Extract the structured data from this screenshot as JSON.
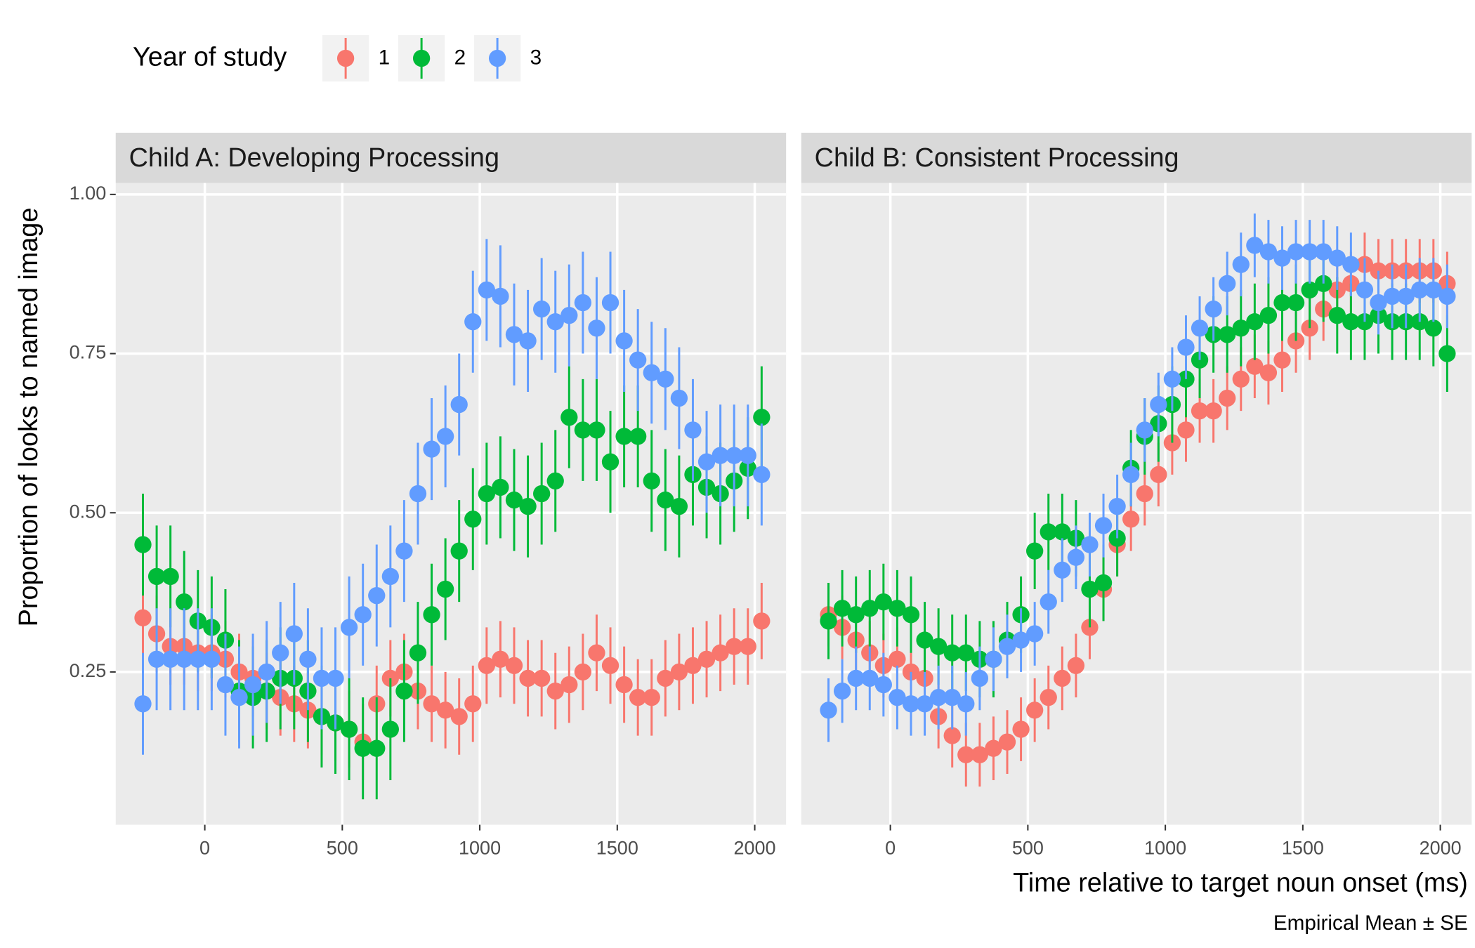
{
  "legend_title": "Year of study",
  "y_label": "Proportion of looks to named image",
  "x_label": "Time relative to target noun onset (ms)",
  "caption": "Empirical Mean ± SE",
  "chart_data": [
    {
      "type": "pointrange",
      "title": "Child A: Developing Processing",
      "x": [
        -225,
        -175,
        -125,
        -75,
        -25,
        25,
        75,
        125,
        175,
        225,
        275,
        325,
        375,
        425,
        475,
        525,
        575,
        625,
        675,
        725,
        775,
        825,
        875,
        925,
        975,
        1025,
        1075,
        1125,
        1175,
        1225,
        1275,
        1325,
        1375,
        1425,
        1475,
        1525,
        1575,
        1625,
        1675,
        1725,
        1775,
        1825,
        1875,
        1925,
        1975,
        2025
      ],
      "xlim": [
        -324,
        2114
      ],
      "xticks": [
        0,
        500,
        1000,
        1500,
        2000
      ],
      "ylim": [
        0.01,
        1.018
      ],
      "yticks": [
        {
          "value": 0.25,
          "label": "0.25"
        },
        {
          "value": 0.5,
          "label": "0.50"
        },
        {
          "value": 0.75,
          "label": "0.75"
        },
        {
          "value": 1,
          "label": "1.00"
        }
      ],
      "grid": true,
      "series": [
        {
          "name": "1",
          "color": "#f8766d",
          "se": 0.06,
          "values": [
            0.335,
            0.31,
            0.29,
            0.29,
            0.28,
            0.28,
            0.27,
            0.25,
            0.24,
            0.22,
            0.21,
            0.2,
            0.19,
            0.18,
            0.17,
            0.16,
            0.14,
            0.2,
            0.24,
            0.25,
            0.22,
            0.2,
            0.19,
            0.18,
            0.2,
            0.26,
            0.27,
            0.26,
            0.24,
            0.24,
            0.22,
            0.23,
            0.25,
            0.28,
            0.26,
            0.23,
            0.21,
            0.21,
            0.24,
            0.25,
            0.26,
            0.27,
            0.28,
            0.29,
            0.29,
            0.33
          ]
        },
        {
          "name": "2",
          "color": "#00ba38",
          "se": 0.08,
          "values": [
            0.45,
            0.4,
            0.4,
            0.36,
            0.33,
            0.32,
            0.3,
            0.22,
            0.21,
            0.22,
            0.24,
            0.24,
            0.22,
            0.18,
            0.17,
            0.16,
            0.13,
            0.13,
            0.16,
            0.22,
            0.28,
            0.34,
            0.38,
            0.44,
            0.49,
            0.53,
            0.54,
            0.52,
            0.51,
            0.53,
            0.55,
            0.65,
            0.63,
            0.63,
            0.58,
            0.62,
            0.62,
            0.55,
            0.52,
            0.51,
            0.56,
            0.54,
            0.53,
            0.55,
            0.57,
            0.65
          ]
        },
        {
          "name": "3",
          "color": "#619cff",
          "se": 0.08,
          "values": [
            0.2,
            0.27,
            0.27,
            0.27,
            0.27,
            0.27,
            0.23,
            0.21,
            0.23,
            0.25,
            0.28,
            0.31,
            0.27,
            0.24,
            0.24,
            0.32,
            0.34,
            0.37,
            0.4,
            0.44,
            0.53,
            0.6,
            0.62,
            0.67,
            0.8,
            0.85,
            0.84,
            0.78,
            0.77,
            0.82,
            0.8,
            0.81,
            0.83,
            0.79,
            0.83,
            0.77,
            0.74,
            0.72,
            0.71,
            0.68,
            0.63,
            0.58,
            0.59,
            0.59,
            0.59,
            0.56
          ]
        }
      ]
    },
    {
      "type": "pointrange",
      "title": "Child B: Consistent Processing",
      "x": [
        -225,
        -175,
        -125,
        -75,
        -25,
        25,
        75,
        125,
        175,
        225,
        275,
        325,
        375,
        425,
        475,
        525,
        575,
        625,
        675,
        725,
        775,
        825,
        875,
        925,
        975,
        1025,
        1075,
        1125,
        1175,
        1225,
        1275,
        1325,
        1375,
        1425,
        1475,
        1525,
        1575,
        1625,
        1675,
        1725,
        1775,
        1825,
        1875,
        1925,
        1975,
        2025
      ],
      "xlim": [
        -324,
        2114
      ],
      "xticks": [
        0,
        500,
        1000,
        1500,
        2000
      ],
      "ylim": [
        0.01,
        1.018
      ],
      "yticks": [
        {
          "value": 0.25,
          "label": "0.25"
        },
        {
          "value": 0.5,
          "label": "0.50"
        },
        {
          "value": 0.75,
          "label": "0.75"
        },
        {
          "value": 1,
          "label": "1.00"
        }
      ],
      "grid": true,
      "series": [
        {
          "name": "1",
          "color": "#f8766d",
          "se": 0.05,
          "values": [
            0.34,
            0.32,
            0.3,
            0.28,
            0.26,
            0.27,
            0.25,
            0.24,
            0.18,
            0.15,
            0.12,
            0.12,
            0.13,
            0.14,
            0.16,
            0.19,
            0.21,
            0.24,
            0.26,
            0.32,
            0.38,
            0.45,
            0.49,
            0.53,
            0.56,
            0.61,
            0.63,
            0.66,
            0.66,
            0.68,
            0.71,
            0.73,
            0.72,
            0.74,
            0.77,
            0.79,
            0.82,
            0.85,
            0.86,
            0.89,
            0.88,
            0.88,
            0.88,
            0.88,
            0.88,
            0.86
          ]
        },
        {
          "name": "2",
          "color": "#00ba38",
          "se": 0.06,
          "values": [
            0.33,
            0.35,
            0.34,
            0.35,
            0.36,
            0.35,
            0.34,
            0.3,
            0.29,
            0.28,
            0.28,
            0.27,
            0.27,
            0.3,
            0.34,
            0.44,
            0.47,
            0.47,
            0.46,
            0.38,
            0.39,
            0.46,
            0.57,
            0.62,
            0.64,
            0.67,
            0.71,
            0.74,
            0.78,
            0.78,
            0.79,
            0.8,
            0.81,
            0.83,
            0.83,
            0.85,
            0.86,
            0.81,
            0.8,
            0.8,
            0.81,
            0.8,
            0.8,
            0.8,
            0.79,
            0.75
          ]
        },
        {
          "name": "3",
          "color": "#619cff",
          "se": 0.05,
          "values": [
            0.19,
            0.22,
            0.24,
            0.24,
            0.23,
            0.21,
            0.2,
            0.2,
            0.21,
            0.21,
            0.2,
            0.24,
            0.27,
            0.29,
            0.3,
            0.31,
            0.36,
            0.41,
            0.43,
            0.45,
            0.48,
            0.51,
            0.56,
            0.63,
            0.67,
            0.71,
            0.76,
            0.79,
            0.82,
            0.86,
            0.89,
            0.92,
            0.91,
            0.9,
            0.91,
            0.91,
            0.91,
            0.9,
            0.89,
            0.85,
            0.83,
            0.84,
            0.84,
            0.85,
            0.85,
            0.84
          ]
        }
      ]
    }
  ]
}
